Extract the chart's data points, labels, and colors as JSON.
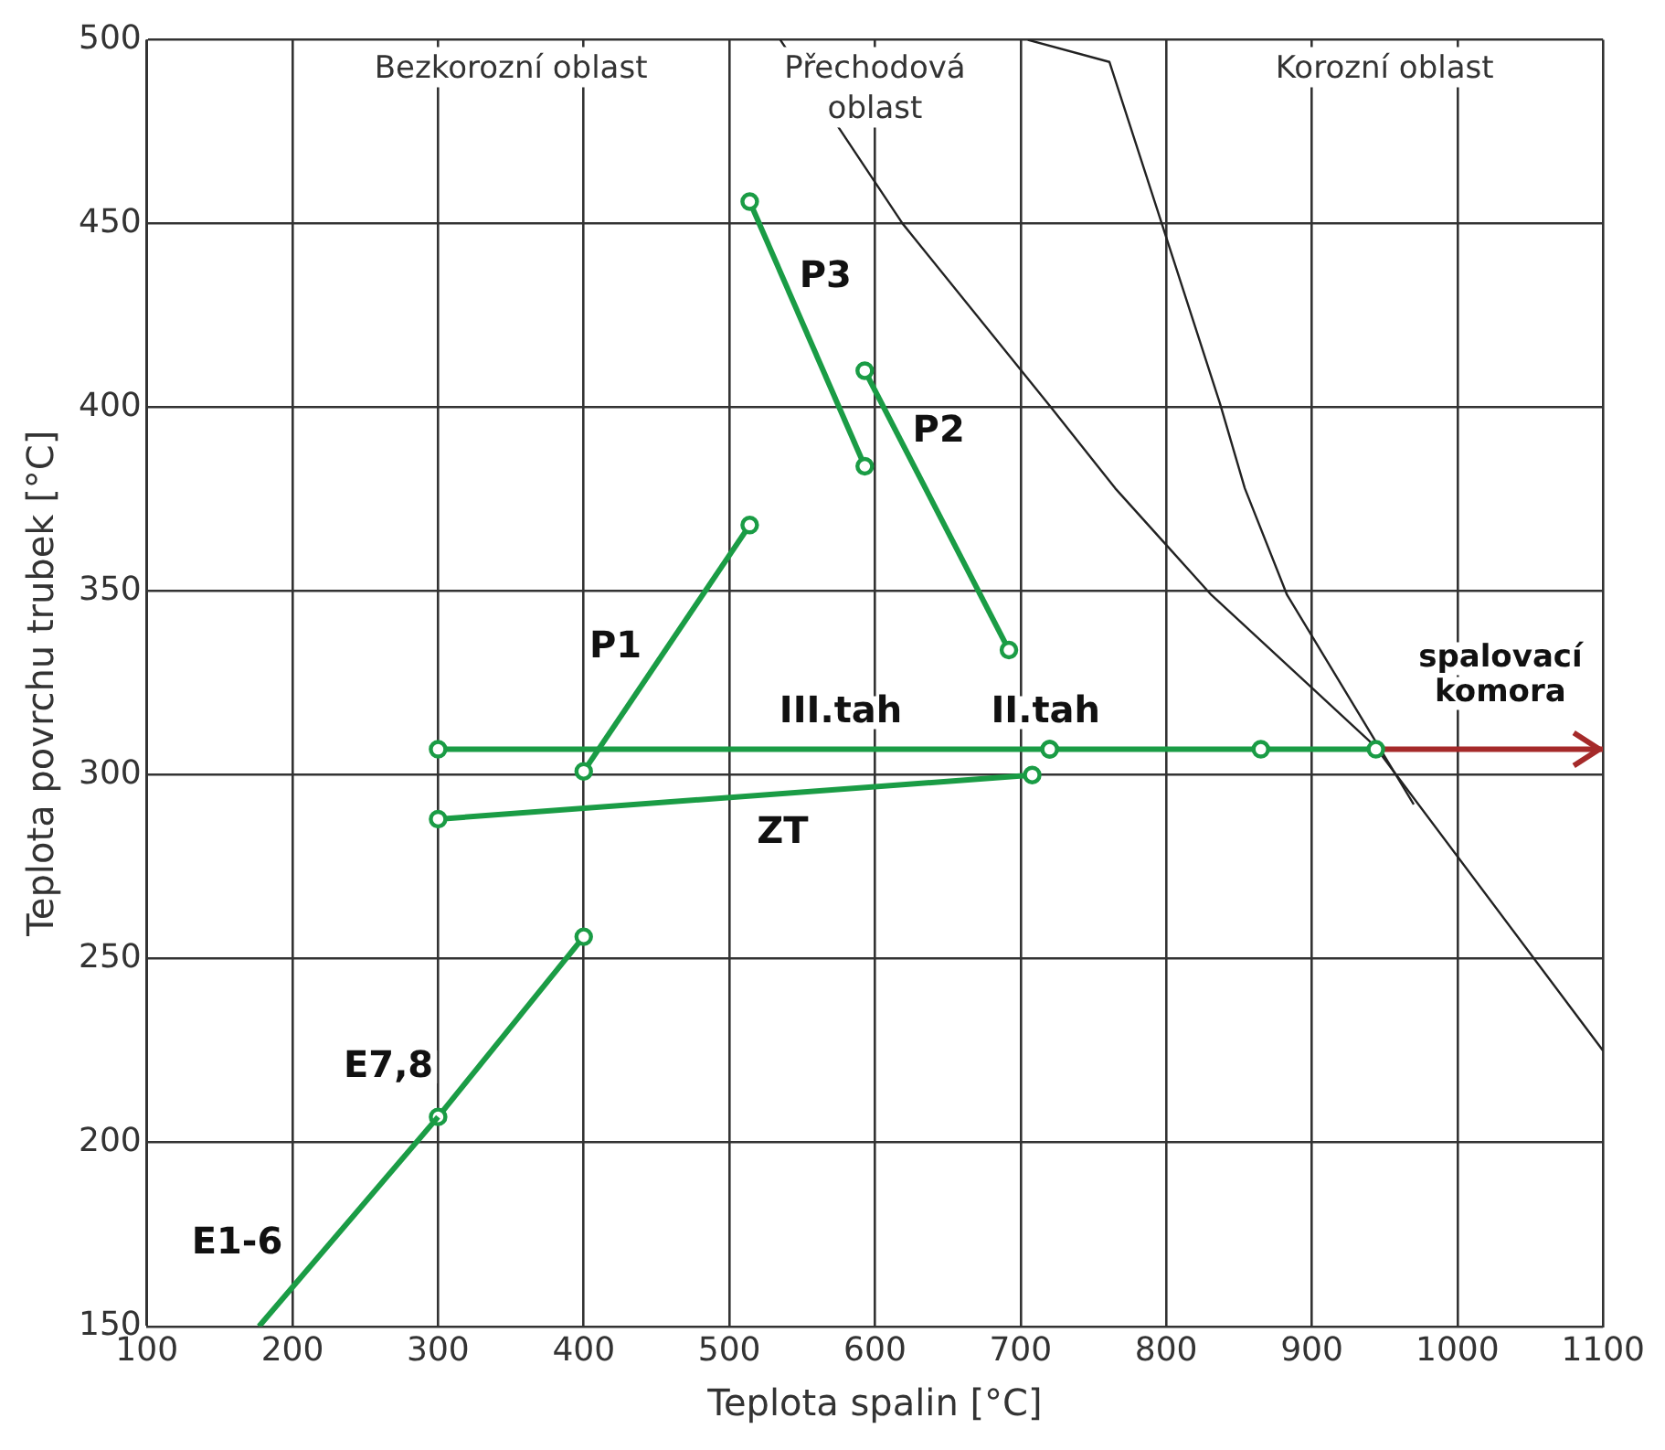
{
  "chart_data": {
    "type": "line",
    "xlabel": "Teplota spalin [°C]",
    "ylabel": "Teplota povrchu trubek [°C]",
    "xlim": [
      100,
      1100
    ],
    "xticks": [
      100,
      200,
      300,
      400,
      500,
      600,
      700,
      800,
      900,
      1000,
      1100
    ],
    "ylim": [
      150,
      500
    ],
    "yticks": [
      150,
      200,
      250,
      300,
      350,
      400,
      450,
      500
    ],
    "grid": true,
    "legend": false,
    "annotations": [
      "Bezkorozní oblast",
      "Přechodová oblast",
      "Korozní oblast"
    ],
    "series": [
      {
        "name": "E1-6",
        "color": "#1a9c45",
        "x": [
          177,
          300
        ],
        "values": [
          150,
          207
        ]
      },
      {
        "name": "E7,8",
        "color": "#1a9c45",
        "marker": "circle",
        "x": [
          300,
          400
        ],
        "values": [
          207,
          256
        ]
      },
      {
        "name": "P1",
        "color": "#1a9c45",
        "marker": "circle",
        "x": [
          400,
          514
        ],
        "values": [
          301,
          368
        ]
      },
      {
        "name": "P2",
        "color": "#1a9c45",
        "marker": "circle",
        "x": [
          593,
          692
        ],
        "values": [
          410,
          334
        ]
      },
      {
        "name": "P3",
        "color": "#1a9c45",
        "marker": "circle",
        "x": [
          514,
          593
        ],
        "values": [
          456,
          384
        ]
      },
      {
        "name": "III.tah",
        "color": "#1a9c45",
        "marker": "circle",
        "x": [
          300,
          720
        ],
        "values": [
          307,
          307
        ]
      },
      {
        "name": "II.tah",
        "color": "#1a9c45",
        "marker": "circle",
        "x": [
          720,
          865,
          944
        ],
        "values": [
          307,
          307,
          307
        ]
      },
      {
        "name": "ZT",
        "color": "#1a9c45",
        "marker": "circle",
        "x": [
          300,
          708
        ],
        "values": [
          288,
          300
        ]
      },
      {
        "name": "spalovací komora",
        "color": "#a52a2a",
        "marker": "none",
        "x": [
          944,
          1100
        ],
        "values": [
          307,
          307
        ]
      },
      {
        "color": "#222222",
        "marker": "none",
        "x": [
          535,
          619,
          721,
          765,
          831,
          943,
          1100
        ],
        "values": [
          500,
          450,
          400,
          378,
          349,
          308,
          225
        ]
      },
      {
        "color": "#222222",
        "marker": "none",
        "x": [
          705,
          761,
          797,
          837,
          854,
          883,
          970
        ],
        "values": [
          500,
          494,
          450,
          401,
          378,
          349,
          292
        ]
      }
    ]
  }
}
